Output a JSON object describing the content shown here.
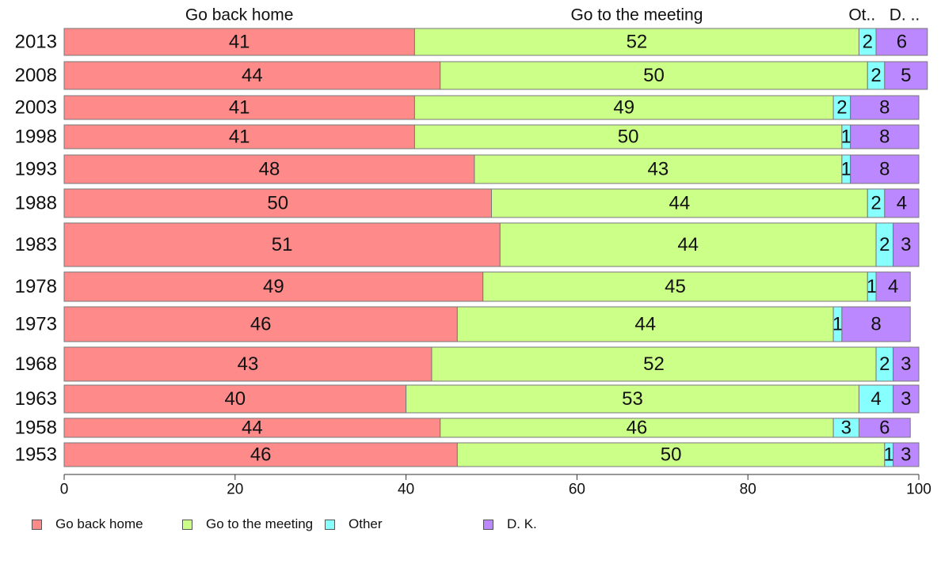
{
  "chart_data": {
    "type": "bar",
    "orientation": "horizontal",
    "stacked": true,
    "categories": [
      "2013",
      "2008",
      "2003",
      "1998",
      "1993",
      "1988",
      "1983",
      "1978",
      "1973",
      "1968",
      "1963",
      "1958",
      "1953"
    ],
    "series": [
      {
        "name": "Go back home",
        "color": "#FF8A8A",
        "values": [
          41,
          44,
          41,
          41,
          48,
          50,
          51,
          49,
          46,
          43,
          40,
          44,
          46
        ]
      },
      {
        "name": "Go to the meeting",
        "color": "#CCFF88",
        "values": [
          52,
          50,
          49,
          50,
          43,
          44,
          44,
          45,
          44,
          52,
          53,
          46,
          50
        ]
      },
      {
        "name": "Other",
        "color": "#88FFFF",
        "values": [
          2,
          2,
          2,
          1,
          1,
          2,
          2,
          1,
          1,
          2,
          4,
          3,
          1
        ]
      },
      {
        "name": "D. K.",
        "color": "#BB88FF",
        "values": [
          6,
          5,
          8,
          8,
          8,
          4,
          3,
          4,
          8,
          3,
          3,
          6,
          3
        ]
      }
    ],
    "top_labels": [
      "Go back home",
      "Go to the meeting",
      "Ot..",
      "D. .."
    ],
    "legend_labels": [
      "Go back home",
      "Go to the meeting",
      "Other",
      "D. K."
    ],
    "xlim": [
      0,
      100
    ],
    "xticks": [
      0,
      20,
      40,
      60,
      80,
      100
    ],
    "legend_position": "bottom-left",
    "grid": false
  }
}
